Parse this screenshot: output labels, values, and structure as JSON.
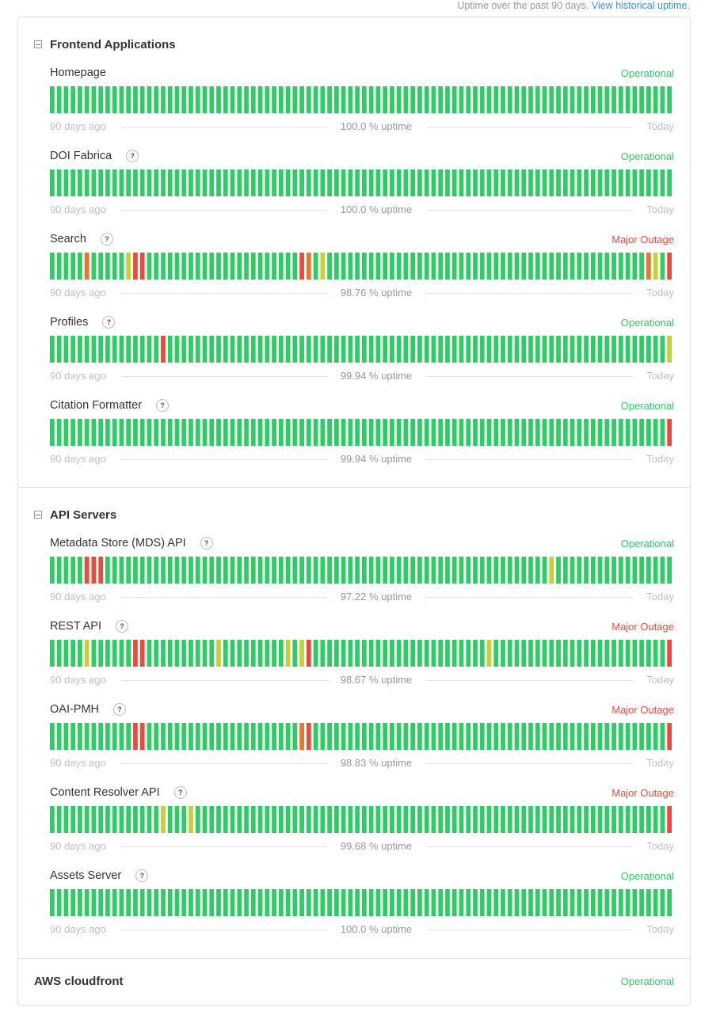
{
  "header": {
    "note": "Uptime over the past 90 days.",
    "link": "View historical uptime."
  },
  "colors": {
    "green": "#2fcc66",
    "yellow": "#c5d13a",
    "orange": "#e8762d",
    "red": "#e74c3c",
    "statusOperational": "#2fcc66",
    "statusMajor": "#e74c3c"
  },
  "groups": [
    {
      "name": "Frontend Applications",
      "components": [
        {
          "name": "Homepage",
          "help": false,
          "status": "Operational",
          "statusType": "operational",
          "left": "90 days ago",
          "uptime": "100.0 % uptime",
          "right": "Today",
          "incidents": {}
        },
        {
          "name": "DOI Fabrica",
          "help": true,
          "status": "Operational",
          "statusType": "operational",
          "left": "90 days ago",
          "uptime": "100.0 % uptime",
          "right": "Today",
          "incidents": {}
        },
        {
          "name": "Search",
          "help": true,
          "status": "Major Outage",
          "statusType": "major",
          "left": "90 days ago",
          "uptime": "98.76 % uptime",
          "right": "Today",
          "incidents": {
            "5": "orange",
            "11": "yellow",
            "12": "red",
            "13": "red",
            "36": "red",
            "37": "orange",
            "39": "yellow",
            "86": "orange",
            "87": "yellow",
            "89": "red"
          }
        },
        {
          "name": "Profiles",
          "help": true,
          "status": "Operational",
          "statusType": "operational",
          "left": "90 days ago",
          "uptime": "99.94 % uptime",
          "right": "Today",
          "incidents": {
            "16": "red",
            "89": "yellow"
          }
        },
        {
          "name": "Citation Formatter",
          "help": true,
          "status": "Operational",
          "statusType": "operational",
          "left": "90 days ago",
          "uptime": "99.94 % uptime",
          "right": "Today",
          "incidents": {
            "89": "red"
          }
        }
      ]
    },
    {
      "name": "API Servers",
      "components": [
        {
          "name": "Metadata Store (MDS) API",
          "help": true,
          "status": "Operational",
          "statusType": "operational",
          "left": "90 days ago",
          "uptime": "97.22 % uptime",
          "right": "Today",
          "incidents": {
            "5": "red",
            "6": "red",
            "7": "red",
            "72": "yellow"
          }
        },
        {
          "name": "REST API",
          "help": true,
          "status": "Major Outage",
          "statusType": "major",
          "left": "90 days ago",
          "uptime": "98.67 % uptime",
          "right": "Today",
          "incidents": {
            "5": "yellow",
            "12": "red",
            "13": "red",
            "24": "yellow",
            "34": "yellow",
            "36": "yellow",
            "37": "red",
            "63": "yellow",
            "89": "red"
          }
        },
        {
          "name": "OAI-PMH",
          "help": true,
          "status": "Major Outage",
          "statusType": "major",
          "left": "90 days ago",
          "uptime": "98.83 % uptime",
          "right": "Today",
          "incidents": {
            "12": "red",
            "13": "red",
            "36": "orange",
            "37": "red",
            "89": "red"
          }
        },
        {
          "name": "Content Resolver API",
          "help": true,
          "status": "Major Outage",
          "statusType": "major",
          "left": "90 days ago",
          "uptime": "99.68 % uptime",
          "right": "Today",
          "incidents": {
            "16": "yellow",
            "20": "yellow",
            "89": "red"
          }
        },
        {
          "name": "Assets Server",
          "help": true,
          "status": "Operational",
          "statusType": "operational",
          "left": "90 days ago",
          "uptime": "100.0 % uptime",
          "right": "Today",
          "incidents": {}
        }
      ]
    }
  ],
  "standalone": {
    "name": "AWS cloudfront",
    "status": "Operational"
  },
  "days": 90
}
